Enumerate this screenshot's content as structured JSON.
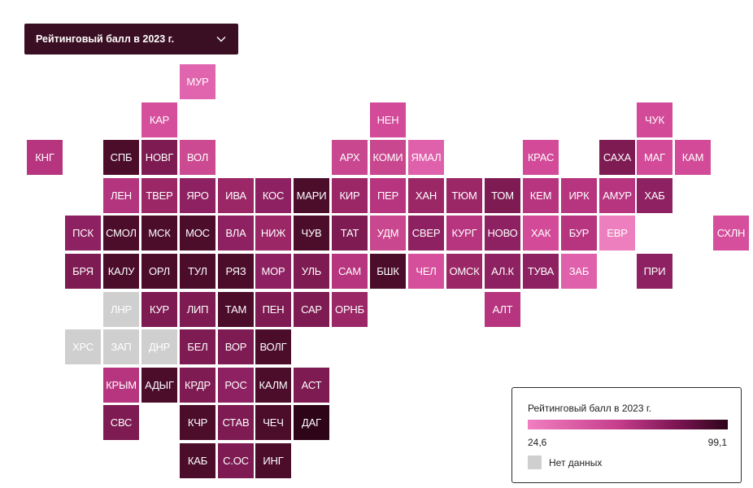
{
  "selector": {
    "label": "Рейтинговый балл в 2023 г.",
    "icon": "chevron-down-icon"
  },
  "legend": {
    "title": "Рейтинговый балл в 2023 г.",
    "min": "24,6",
    "max": "99,1",
    "no_data_label": "Нет данных",
    "no_data_color": "#cfcfcf",
    "gradient_colors": [
      "#f07fc0",
      "#c73e8c",
      "#7a1452",
      "#2e0419"
    ]
  },
  "regions": [
    {
      "label": "МУР",
      "col": 4,
      "row": 0,
      "color": "#e065ae"
    },
    {
      "label": "КАР",
      "col": 3,
      "row": 1,
      "color": "#d54f9c"
    },
    {
      "label": "НЕН",
      "col": 9,
      "row": 1,
      "color": "#d24a98"
    },
    {
      "label": "ЧУК",
      "col": 16,
      "row": 1,
      "color": "#d24a98"
    },
    {
      "label": "КНГ",
      "col": 0,
      "row": 2,
      "color": "#b7347f"
    },
    {
      "label": "СПБ",
      "col": 2,
      "row": 2,
      "color": "#4c0d2b"
    },
    {
      "label": "НОВГ",
      "col": 3,
      "row": 2,
      "color": "#7d1b52"
    },
    {
      "label": "ВОЛ",
      "col": 4,
      "row": 2,
      "color": "#cc4a92"
    },
    {
      "label": "АРХ",
      "col": 8,
      "row": 2,
      "color": "#c9478f"
    },
    {
      "label": "КОМИ",
      "col": 9,
      "row": 2,
      "color": "#c9478f"
    },
    {
      "label": "ЯМАЛ",
      "col": 10,
      "row": 2,
      "color": "#df60ab"
    },
    {
      "label": "КРАС",
      "col": 13,
      "row": 2,
      "color": "#d24a98"
    },
    {
      "label": "САХА",
      "col": 15,
      "row": 2,
      "color": "#7d1b52"
    },
    {
      "label": "МАГ",
      "col": 16,
      "row": 2,
      "color": "#d24a98"
    },
    {
      "label": "КАМ",
      "col": 17,
      "row": 2,
      "color": "#d24a98"
    },
    {
      "label": "ЛЕН",
      "col": 2,
      "row": 3,
      "color": "#b3357e"
    },
    {
      "label": "ТВЕР",
      "col": 3,
      "row": 3,
      "color": "#9b2767"
    },
    {
      "label": "ЯРО",
      "col": 4,
      "row": 3,
      "color": "#8e2161"
    },
    {
      "label": "ИВА",
      "col": 5,
      "row": 3,
      "color": "#9b2767"
    },
    {
      "label": "КОС",
      "col": 6,
      "row": 3,
      "color": "#8e2161"
    },
    {
      "label": "МАРИ",
      "col": 7,
      "row": 3,
      "color": "#4c0d2b"
    },
    {
      "label": "КИР",
      "col": 8,
      "row": 3,
      "color": "#9b2767"
    },
    {
      "label": "ПЕР",
      "col": 9,
      "row": 3,
      "color": "#b7347f"
    },
    {
      "label": "ХАН",
      "col": 10,
      "row": 3,
      "color": "#9b2767"
    },
    {
      "label": "ТЮМ",
      "col": 11,
      "row": 3,
      "color": "#9b2767"
    },
    {
      "label": "ТОМ",
      "col": 12,
      "row": 3,
      "color": "#7d1b52"
    },
    {
      "label": "КЕМ",
      "col": 13,
      "row": 3,
      "color": "#b7347f"
    },
    {
      "label": "ИРК",
      "col": 14,
      "row": 3,
      "color": "#b7347f"
    },
    {
      "label": "АМУР",
      "col": 15,
      "row": 3,
      "color": "#b7347f"
    },
    {
      "label": "ХАБ",
      "col": 16,
      "row": 3,
      "color": "#8e2161"
    },
    {
      "label": "ПСК",
      "col": 1,
      "row": 4,
      "color": "#8e2161"
    },
    {
      "label": "СМОЛ",
      "col": 2,
      "row": 4,
      "color": "#4c0d2b"
    },
    {
      "label": "МСК",
      "col": 3,
      "row": 4,
      "color": "#4c0d2b"
    },
    {
      "label": "МОС",
      "col": 4,
      "row": 4,
      "color": "#4c0d2b"
    },
    {
      "label": "ВЛА",
      "col": 5,
      "row": 4,
      "color": "#8e2161"
    },
    {
      "label": "НИЖ",
      "col": 6,
      "row": 4,
      "color": "#9b2767"
    },
    {
      "label": "ЧУВ",
      "col": 7,
      "row": 4,
      "color": "#4c0d2b"
    },
    {
      "label": "ТАТ",
      "col": 8,
      "row": 4,
      "color": "#7d1b52"
    },
    {
      "label": "УДМ",
      "col": 9,
      "row": 4,
      "color": "#c9478f"
    },
    {
      "label": "СВЕР",
      "col": 10,
      "row": 4,
      "color": "#8e2161"
    },
    {
      "label": "КУРГ",
      "col": 11,
      "row": 4,
      "color": "#b7347f"
    },
    {
      "label": "НОВО",
      "col": 12,
      "row": 4,
      "color": "#8e2161"
    },
    {
      "label": "ХАК",
      "col": 13,
      "row": 4,
      "color": "#d24a98"
    },
    {
      "label": "БУР",
      "col": 14,
      "row": 4,
      "color": "#b7347f"
    },
    {
      "label": "ЕВР",
      "col": 15,
      "row": 4,
      "color": "#ee7fbe"
    },
    {
      "label": "СХЛН",
      "col": 18,
      "row": 4,
      "color": "#d54f9c"
    },
    {
      "label": "БРЯ",
      "col": 1,
      "row": 5,
      "color": "#7d1b52"
    },
    {
      "label": "КАЛУ",
      "col": 2,
      "row": 5,
      "color": "#4c0d2b"
    },
    {
      "label": "ОРЛ",
      "col": 3,
      "row": 5,
      "color": "#4c0d2b"
    },
    {
      "label": "ТУЛ",
      "col": 4,
      "row": 5,
      "color": "#4c0d2b"
    },
    {
      "label": "РЯЗ",
      "col": 5,
      "row": 5,
      "color": "#4c0d2b"
    },
    {
      "label": "МОР",
      "col": 6,
      "row": 5,
      "color": "#8e2161"
    },
    {
      "label": "УЛЬ",
      "col": 7,
      "row": 5,
      "color": "#7d1b52"
    },
    {
      "label": "САМ",
      "col": 8,
      "row": 5,
      "color": "#b7347f"
    },
    {
      "label": "БШК",
      "col": 9,
      "row": 5,
      "color": "#4c0d2b"
    },
    {
      "label": "ЧЕЛ",
      "col": 10,
      "row": 5,
      "color": "#d54f9c"
    },
    {
      "label": "ОМСК",
      "col": 11,
      "row": 5,
      "color": "#9b2767"
    },
    {
      "label": "АЛ.К",
      "col": 12,
      "row": 5,
      "color": "#8e2161"
    },
    {
      "label": "ТУВА",
      "col": 13,
      "row": 5,
      "color": "#8e2161"
    },
    {
      "label": "ЗАБ",
      "col": 14,
      "row": 5,
      "color": "#df60ab"
    },
    {
      "label": "ПРИ",
      "col": 16,
      "row": 5,
      "color": "#8e2161"
    },
    {
      "label": "ЛНР",
      "col": 2,
      "row": 6,
      "color": "#cfcfcf"
    },
    {
      "label": "КУР",
      "col": 3,
      "row": 6,
      "color": "#7d1b52"
    },
    {
      "label": "ЛИП",
      "col": 4,
      "row": 6,
      "color": "#7d1b52"
    },
    {
      "label": "ТАМ",
      "col": 5,
      "row": 6,
      "color": "#4c0d2b"
    },
    {
      "label": "ПЕН",
      "col": 6,
      "row": 6,
      "color": "#7d1b52"
    },
    {
      "label": "САР",
      "col": 7,
      "row": 6,
      "color": "#7d1b52"
    },
    {
      "label": "ОРНБ",
      "col": 8,
      "row": 6,
      "color": "#9b2767"
    },
    {
      "label": "АЛТ",
      "col": 12,
      "row": 6,
      "color": "#b7347f"
    },
    {
      "label": "ХРС",
      "col": 1,
      "row": 7,
      "color": "#cfcfcf"
    },
    {
      "label": "ЗАП",
      "col": 2,
      "row": 7,
      "color": "#cfcfcf"
    },
    {
      "label": "ДНР",
      "col": 3,
      "row": 7,
      "color": "#cfcfcf"
    },
    {
      "label": "БЕЛ",
      "col": 4,
      "row": 7,
      "color": "#7d1b52"
    },
    {
      "label": "ВОР",
      "col": 5,
      "row": 7,
      "color": "#7d1b52"
    },
    {
      "label": "ВОЛГ",
      "col": 6,
      "row": 7,
      "color": "#4c0d2b"
    },
    {
      "label": "КРЫМ",
      "col": 2,
      "row": 8,
      "color": "#b7347f"
    },
    {
      "label": "АДЫГ",
      "col": 3,
      "row": 8,
      "color": "#4c0d2b"
    },
    {
      "label": "КРДР",
      "col": 4,
      "row": 8,
      "color": "#7d1b52"
    },
    {
      "label": "РОС",
      "col": 5,
      "row": 8,
      "color": "#8e2161"
    },
    {
      "label": "КАЛМ",
      "col": 6,
      "row": 8,
      "color": "#4c0d2b"
    },
    {
      "label": "АСТ",
      "col": 7,
      "row": 8,
      "color": "#7d1b52"
    },
    {
      "label": "СВС",
      "col": 2,
      "row": 9,
      "color": "#7d1b52"
    },
    {
      "label": "КЧР",
      "col": 4,
      "row": 9,
      "color": "#4c0d2b"
    },
    {
      "label": "СТАВ",
      "col": 5,
      "row": 9,
      "color": "#7d1b52"
    },
    {
      "label": "ЧЕЧ",
      "col": 6,
      "row": 9,
      "color": "#4c0d2b"
    },
    {
      "label": "ДАГ",
      "col": 7,
      "row": 9,
      "color": "#2e0419"
    },
    {
      "label": "КАБ",
      "col": 4,
      "row": 10,
      "color": "#4c0d2b"
    },
    {
      "label": "С.ОС",
      "col": 5,
      "row": 10,
      "color": "#7d1b52"
    },
    {
      "label": "ИНГ",
      "col": 6,
      "row": 10,
      "color": "#4c0d2b"
    }
  ]
}
